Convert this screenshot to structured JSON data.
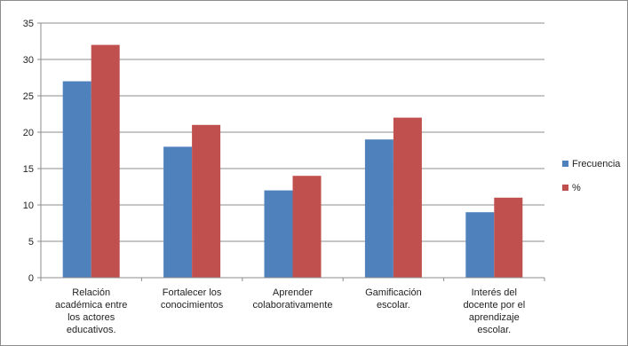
{
  "chart_data": {
    "type": "bar",
    "categories": [
      [
        "Relación",
        "académica entre",
        "los actores",
        "educativos."
      ],
      [
        "Fortalecer  los",
        "conocimientos"
      ],
      [
        "Aprender",
        "colaborativamente"
      ],
      [
        "Gamificación",
        "escolar."
      ],
      [
        "Interés del",
        "docente por el",
        "aprendizaje",
        "escolar."
      ]
    ],
    "series": [
      {
        "name": "Frecuencia",
        "color": "#4f81bd",
        "values": [
          27,
          18,
          12,
          19,
          9
        ]
      },
      {
        "name": "%",
        "color": "#c0504d",
        "values": [
          32,
          21,
          14,
          22,
          11
        ]
      }
    ],
    "ylim": [
      0,
      35
    ],
    "yticks": [
      0,
      5,
      10,
      15,
      20,
      25,
      30,
      35
    ],
    "grid": true,
    "legend": "right"
  }
}
